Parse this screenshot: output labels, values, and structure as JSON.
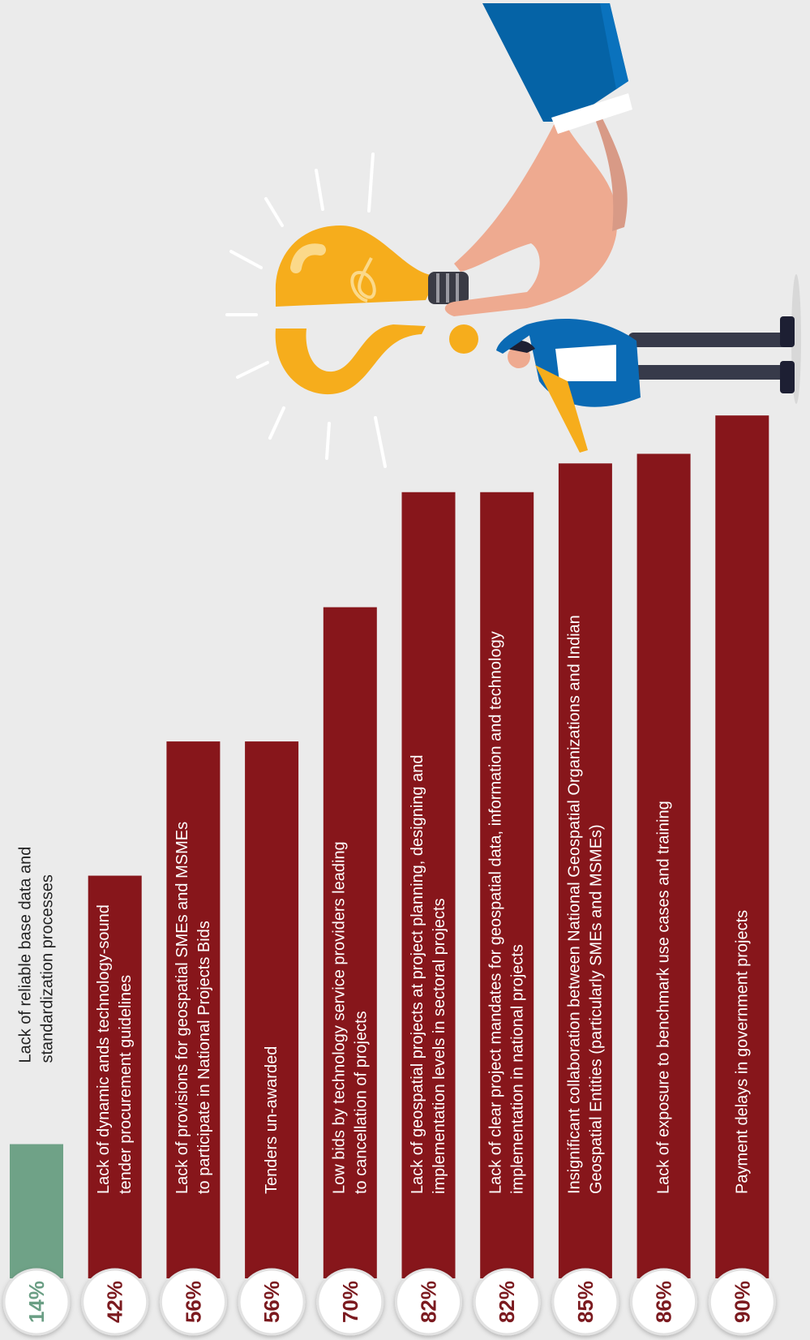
{
  "chart_data": {
    "type": "bar",
    "categories": [
      [
        "Lack of reliable base data and",
        "standardization processes"
      ],
      [
        "Lack of dynamic ands technology-sound",
        "tender procurement guidelines"
      ],
      [
        "Lack of provisions for geospatial SMEs and MSMEs",
        "to participate in National Projects Bids"
      ],
      [
        "Tenders un-awarded"
      ],
      [
        "Low bids by technology service providers leading",
        "to cancellation of projects"
      ],
      [
        "Lack of geospatial projects at project planning, designing and",
        "implementation levels in sectoral projects"
      ],
      [
        "Lack of clear project mandates for geospatial data, information and technology",
        "implementation in national projects"
      ],
      [
        "Insignificant collaboration between National Geospatial Organizations and Indian",
        "Geospatial Entities (particularly SMEs and MSMEs)"
      ],
      [
        "Lack of exposure to benchmark use cases and training"
      ],
      [
        "Payment delays in government projects"
      ]
    ],
    "values": [
      14,
      42,
      56,
      56,
      70,
      82,
      82,
      85,
      86,
      90
    ],
    "value_labels": [
      "14%",
      "42%",
      "56%",
      "56%",
      "70%",
      "82%",
      "82%",
      "85%",
      "86%",
      "90%"
    ],
    "colors": [
      "#6fa287",
      "#87161b",
      "#87161b",
      "#87161b",
      "#87161b",
      "#87161b",
      "#87161b",
      "#87161b",
      "#87161b",
      "#87161b"
    ]
  }
}
